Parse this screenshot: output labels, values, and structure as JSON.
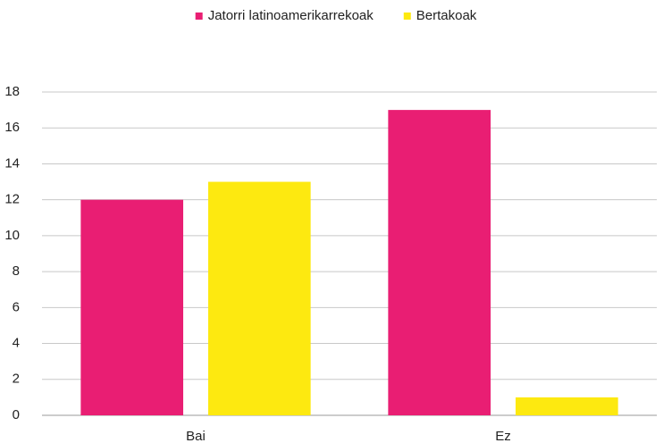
{
  "chart_data": {
    "type": "bar",
    "categories": [
      "Bai",
      "Ez"
    ],
    "series": [
      {
        "name": "Jatorri latinoamerikarrekoak",
        "color": "#e91e73",
        "values": [
          12,
          17
        ]
      },
      {
        "name": "Bertakoak",
        "color": "#fde910",
        "values": [
          13,
          1
        ]
      }
    ],
    "ylim": [
      0,
      18
    ],
    "yticks": [
      0,
      2,
      4,
      6,
      8,
      10,
      12,
      14,
      16,
      18
    ],
    "grid": true,
    "legend": "top"
  }
}
